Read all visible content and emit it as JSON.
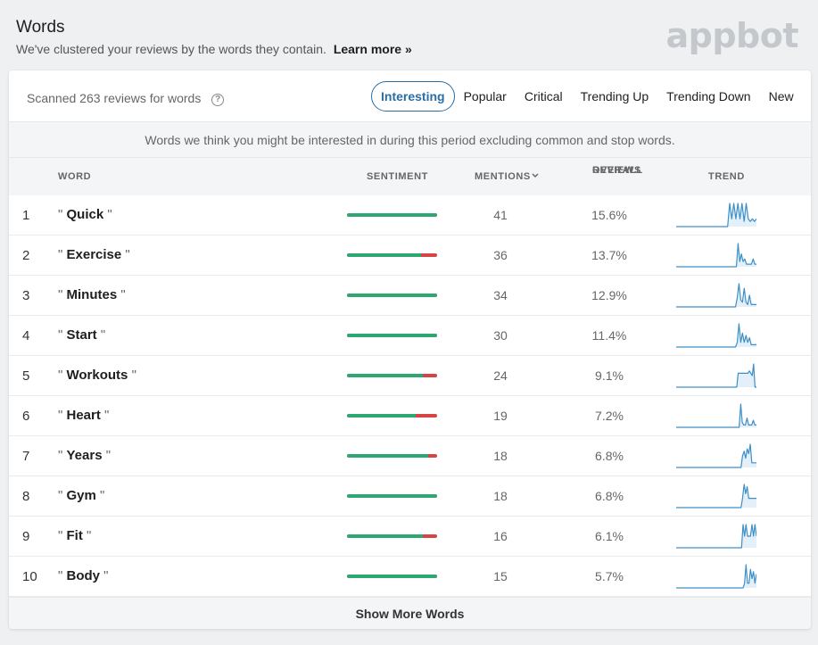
{
  "header": {
    "title": "Words",
    "subtitle": "We've clustered your reviews by the words they contain.",
    "learn_more": "Learn more »"
  },
  "brand": {
    "logo": "appbot",
    "accent": "#2b6ea4",
    "positive": "#2ea872",
    "negative": "#d64545"
  },
  "toolbar": {
    "scanned": "Scanned 263 reviews for words",
    "help_icon": "?",
    "tabs": [
      "Interesting",
      "Popular",
      "Critical",
      "Trending Up",
      "Trending Down",
      "New"
    ],
    "active_tab": "Interesting"
  },
  "notice": "Words we think you might be interested in during this period excluding common and stop words.",
  "columns": {
    "word": "WORD",
    "sentiment": "SENTIMENT",
    "mentions": "MENTIONS",
    "mentions_sort_icon": "chevron-down-icon",
    "overall_line1": "OVERALL",
    "overall_line2": "REVIEWS",
    "trend": "TREND"
  },
  "rows": [
    {
      "rank": "1",
      "word": "Quick",
      "positive_ratio": 1.0,
      "mentions": "41",
      "overall": "15.6%",
      "trend": [
        0,
        0,
        0,
        0,
        0,
        0,
        0,
        0,
        0,
        0,
        0,
        0,
        0,
        0,
        0,
        0,
        0,
        0,
        0,
        0,
        0,
        0,
        0,
        0,
        0,
        0,
        9,
        3,
        9,
        3,
        9,
        3,
        9,
        2,
        9,
        3,
        2,
        3,
        2,
        3
      ]
    },
    {
      "rank": "2",
      "word": "Exercise",
      "positive_ratio": 0.82,
      "mentions": "36",
      "overall": "13.7%",
      "trend": [
        0,
        0,
        0,
        0,
        0,
        0,
        0,
        0,
        0,
        0,
        0,
        0,
        0,
        0,
        0,
        0,
        0,
        0,
        0,
        0,
        0,
        0,
        0,
        0,
        0,
        0,
        0,
        0,
        0,
        0,
        0,
        0,
        0,
        0,
        0,
        0,
        0,
        9,
        2,
        5,
        2,
        3,
        1,
        1,
        1,
        1,
        3,
        1,
        1
      ]
    },
    {
      "rank": "3",
      "word": "Minutes",
      "positive_ratio": 1.0,
      "mentions": "34",
      "overall": "12.9%",
      "trend": [
        0,
        0,
        0,
        0,
        0,
        0,
        0,
        0,
        0,
        0,
        0,
        0,
        0,
        0,
        0,
        0,
        0,
        0,
        0,
        0,
        0,
        0,
        0,
        0,
        0,
        0,
        0,
        0,
        0,
        0,
        0,
        0,
        0,
        0,
        0,
        4,
        10,
        3,
        2,
        8,
        2,
        1,
        5,
        1,
        1,
        1,
        1
      ]
    },
    {
      "rank": "4",
      "word": "Start",
      "positive_ratio": 1.0,
      "mentions": "30",
      "overall": "11.4%",
      "trend": [
        0,
        0,
        0,
        0,
        0,
        0,
        0,
        0,
        0,
        0,
        0,
        0,
        0,
        0,
        0,
        0,
        0,
        0,
        0,
        0,
        0,
        0,
        0,
        0,
        0,
        0,
        0,
        0,
        0,
        0,
        0,
        0,
        0,
        0,
        0,
        2,
        10,
        2,
        6,
        2,
        5,
        2,
        4,
        1,
        1,
        1,
        1
      ]
    },
    {
      "rank": "5",
      "word": "Workouts",
      "positive_ratio": 0.84,
      "mentions": "24",
      "overall": "9.1%",
      "trend": [
        0,
        0,
        0,
        0,
        0,
        0,
        0,
        0,
        0,
        0,
        0,
        0,
        0,
        0,
        0,
        0,
        0,
        0,
        0,
        0,
        0,
        0,
        0,
        0,
        0,
        0,
        0,
        0,
        0,
        0,
        0,
        0,
        0,
        0,
        0,
        0,
        0,
        0,
        0,
        0,
        0,
        0,
        0,
        0,
        6,
        6,
        6,
        6,
        6,
        6,
        6,
        6,
        7,
        6,
        5,
        10,
        0,
        0
      ]
    },
    {
      "rank": "6",
      "word": "Heart",
      "positive_ratio": 0.76,
      "mentions": "19",
      "overall": "7.2%",
      "trend": [
        0,
        0,
        0,
        0,
        0,
        0,
        0,
        0,
        0,
        0,
        0,
        0,
        0,
        0,
        0,
        0,
        0,
        0,
        0,
        0,
        0,
        0,
        0,
        0,
        0,
        0,
        0,
        0,
        0,
        0,
        0,
        0,
        0,
        0,
        0,
        0,
        0,
        0,
        0,
        0,
        0,
        10,
        2,
        1,
        1,
        4,
        1,
        1,
        1,
        3,
        1,
        1
      ]
    },
    {
      "rank": "7",
      "word": "Years",
      "positive_ratio": 0.9,
      "mentions": "18",
      "overall": "6.8%",
      "trend": [
        0,
        0,
        0,
        0,
        0,
        0,
        0,
        0,
        0,
        0,
        0,
        0,
        0,
        0,
        0,
        0,
        0,
        0,
        0,
        0,
        0,
        0,
        0,
        0,
        0,
        0,
        0,
        0,
        0,
        0,
        0,
        0,
        0,
        0,
        0,
        0,
        0,
        0,
        0,
        0,
        0,
        0,
        0,
        5,
        7,
        4,
        8,
        6,
        10,
        2,
        2,
        2,
        2
      ]
    },
    {
      "rank": "8",
      "word": "Gym",
      "positive_ratio": 1.0,
      "mentions": "18",
      "overall": "6.8%",
      "trend": [
        0,
        0,
        0,
        0,
        0,
        0,
        0,
        0,
        0,
        0,
        0,
        0,
        0,
        0,
        0,
        0,
        0,
        0,
        0,
        0,
        0,
        0,
        0,
        0,
        0,
        0,
        0,
        0,
        0,
        0,
        0,
        0,
        0,
        0,
        0,
        0,
        0,
        0,
        0,
        0,
        0,
        0,
        0,
        4,
        10,
        6,
        9,
        4,
        4,
        4,
        4,
        4,
        4
      ]
    },
    {
      "rank": "9",
      "word": "Fit",
      "positive_ratio": 0.84,
      "mentions": "16",
      "overall": "6.1%",
      "trend": [
        0,
        0,
        0,
        0,
        0,
        0,
        0,
        0,
        0,
        0,
        0,
        0,
        0,
        0,
        0,
        0,
        0,
        0,
        0,
        0,
        0,
        0,
        0,
        0,
        0,
        0,
        0,
        0,
        0,
        0,
        0,
        0,
        0,
        0,
        0,
        0,
        0,
        0,
        0,
        0,
        0,
        0,
        0,
        0,
        0,
        10,
        5,
        10,
        5,
        5,
        5,
        10,
        5,
        10,
        5
      ]
    },
    {
      "rank": "10",
      "word": "Body",
      "positive_ratio": 1.0,
      "mentions": "15",
      "overall": "5.7%",
      "trend": [
        0,
        0,
        0,
        0,
        0,
        0,
        0,
        0,
        0,
        0,
        0,
        0,
        0,
        0,
        0,
        0,
        0,
        0,
        0,
        0,
        0,
        0,
        0,
        0,
        0,
        0,
        0,
        0,
        0,
        0,
        0,
        0,
        0,
        0,
        0,
        0,
        0,
        0,
        0,
        0,
        0,
        0,
        0,
        0,
        0,
        0,
        2,
        10,
        2,
        2,
        8,
        4,
        7,
        2,
        6
      ]
    }
  ],
  "footer": {
    "show_more": "Show More Words"
  }
}
